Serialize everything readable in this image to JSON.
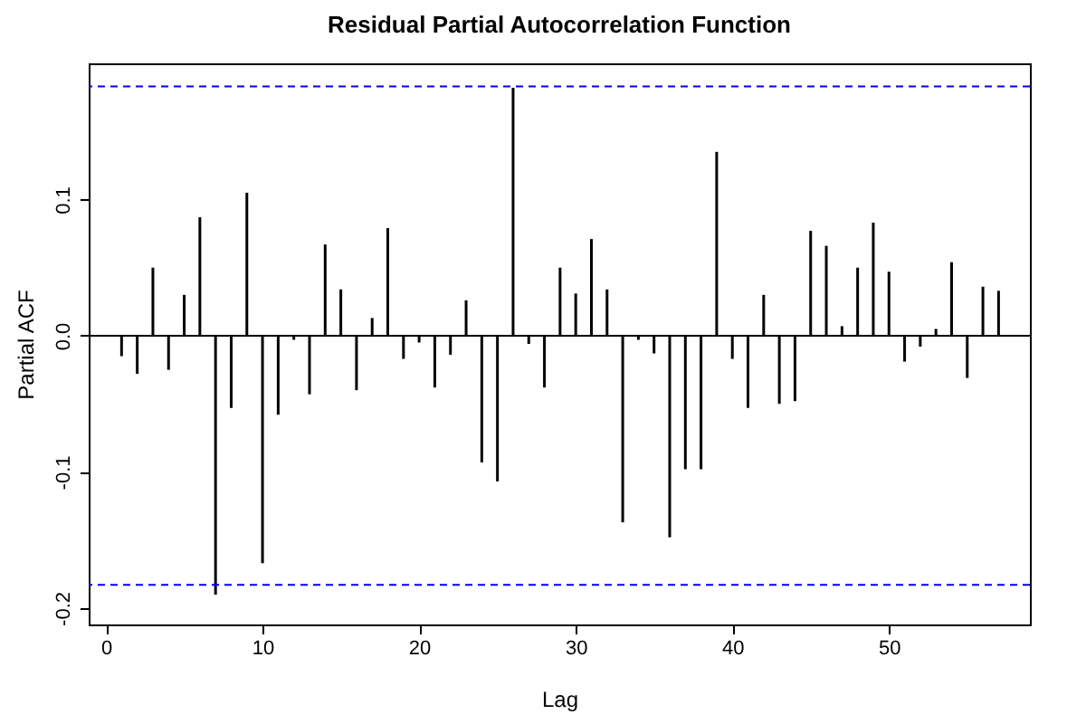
{
  "chart_data": {
    "type": "bar",
    "title": "Residual Partial Autocorrelation Function",
    "xlabel": "Lag",
    "ylabel": "Partial ACF",
    "x": [
      1,
      2,
      3,
      4,
      5,
      6,
      7,
      8,
      9,
      10,
      11,
      12,
      13,
      14,
      15,
      16,
      17,
      18,
      19,
      20,
      21,
      22,
      23,
      24,
      25,
      26,
      27,
      28,
      29,
      30,
      31,
      32,
      33,
      34,
      35,
      36,
      37,
      38,
      39,
      40,
      41,
      42,
      43,
      44,
      45,
      46,
      47,
      48,
      49,
      50,
      51,
      52,
      53,
      54,
      55,
      56,
      57
    ],
    "values": [
      -0.015,
      -0.028,
      0.05,
      -0.025,
      0.03,
      0.087,
      -0.19,
      -0.053,
      0.105,
      -0.167,
      -0.058,
      -0.003,
      -0.043,
      0.067,
      0.034,
      -0.04,
      0.013,
      0.079,
      -0.017,
      -0.005,
      -0.038,
      -0.014,
      0.026,
      -0.093,
      -0.107,
      0.182,
      -0.006,
      -0.038,
      0.05,
      0.031,
      0.071,
      0.034,
      -0.137,
      -0.003,
      -0.013,
      -0.148,
      -0.098,
      -0.098,
      0.135,
      -0.017,
      -0.053,
      0.03,
      -0.05,
      -0.048,
      0.077,
      0.066,
      0.007,
      0.05,
      0.083,
      0.047,
      -0.019,
      -0.008,
      0.005,
      0.054,
      -0.031,
      0.036,
      0.033
    ],
    "color": "#000000",
    "xlim": [
      -1.1,
      59
    ],
    "xticks": [
      0,
      10,
      20,
      30,
      40,
      50
    ],
    "ylim": [
      -0.212,
      0.2
    ],
    "yticks": [
      {
        "value": -0.2,
        "label": "-0.2"
      },
      {
        "value": -0.1,
        "label": "-0.1"
      },
      {
        "value": 0,
        "label": "0.0"
      },
      {
        "value": 0.1,
        "label": "0.1"
      }
    ],
    "ref_lines": [
      {
        "axis": "y",
        "value": 0.183,
        "color": "#0000ff",
        "line_style": "dashed"
      },
      {
        "axis": "y",
        "value": -0.183,
        "color": "#0000ff",
        "line_style": "dashed"
      },
      {
        "axis": "y",
        "value": 0,
        "color": "#000000",
        "line_style": "solid"
      }
    ],
    "grid": false
  }
}
